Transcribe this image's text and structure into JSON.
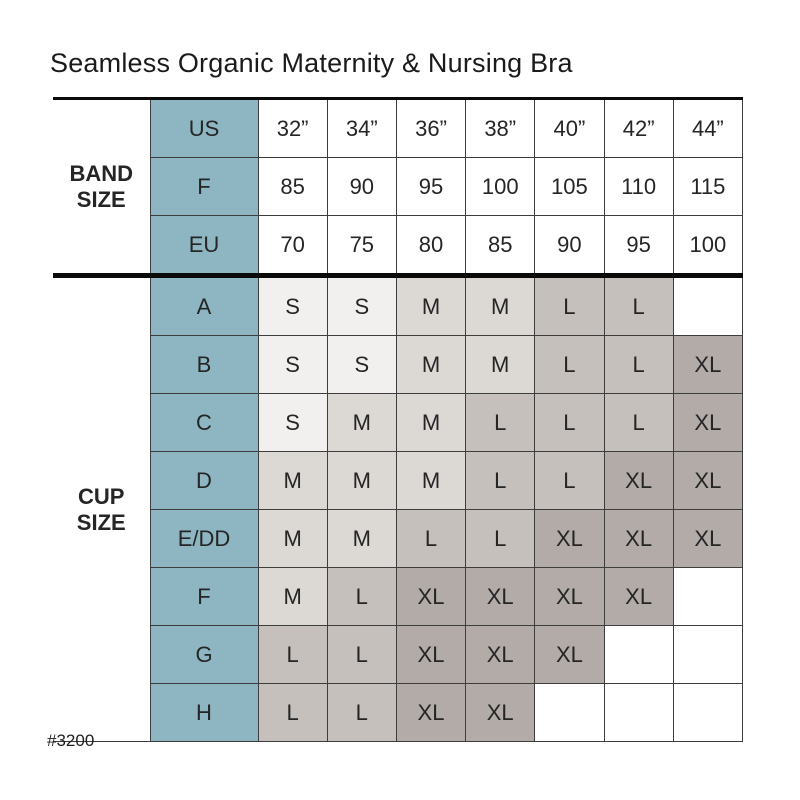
{
  "title": "Seamless Organic Maternity & Nursing Bra",
  "product_code": "#3200",
  "colors": {
    "blue_header": "#8db6c2",
    "s_cell": "#f1f0ee",
    "m_cell": "#dcd8d4",
    "l_cell": "#c6c0bc",
    "xl_cell": "#b2aba8",
    "empty_cell": "#ffffff",
    "grid_line": "#3d3d3d",
    "separator": "#0a0a0a"
  },
  "chart_data": {
    "type": "table",
    "title": "Seamless Organic Maternity & Nursing Bra",
    "columns": [
      "32”",
      "34”",
      "36”",
      "38”",
      "40”",
      "42”",
      "44”"
    ],
    "sections": [
      {
        "label": "BAND SIZE",
        "kind": "band",
        "rows": [
          {
            "header": "US",
            "cells": [
              "32”",
              "34”",
              "36”",
              "38”",
              "40”",
              "42”",
              "44”"
            ]
          },
          {
            "header": "F",
            "cells": [
              "85",
              "90",
              "95",
              "100",
              "105",
              "110",
              "115"
            ]
          },
          {
            "header": "EU",
            "cells": [
              "70",
              "75",
              "80",
              "85",
              "90",
              "95",
              "100"
            ]
          }
        ]
      },
      {
        "label": "CUP SIZE",
        "kind": "cup",
        "rows": [
          {
            "header": "A",
            "cells": [
              "S",
              "S",
              "M",
              "M",
              "L",
              "L",
              ""
            ]
          },
          {
            "header": "B",
            "cells": [
              "S",
              "S",
              "M",
              "M",
              "L",
              "L",
              "XL"
            ]
          },
          {
            "header": "C",
            "cells": [
              "S",
              "M",
              "M",
              "L",
              "L",
              "L",
              "XL"
            ]
          },
          {
            "header": "D",
            "cells": [
              "M",
              "M",
              "M",
              "L",
              "L",
              "XL",
              "XL"
            ]
          },
          {
            "header": "E/DD",
            "cells": [
              "M",
              "M",
              "L",
              "L",
              "XL",
              "XL",
              "XL"
            ]
          },
          {
            "header": "F",
            "cells": [
              "M",
              "L",
              "XL",
              "XL",
              "XL",
              "XL",
              ""
            ]
          },
          {
            "header": "G",
            "cells": [
              "L",
              "L",
              "XL",
              "XL",
              "XL",
              "",
              ""
            ]
          },
          {
            "header": "H",
            "cells": [
              "L",
              "L",
              "XL",
              "XL",
              "",
              "",
              ""
            ]
          }
        ]
      }
    ]
  }
}
